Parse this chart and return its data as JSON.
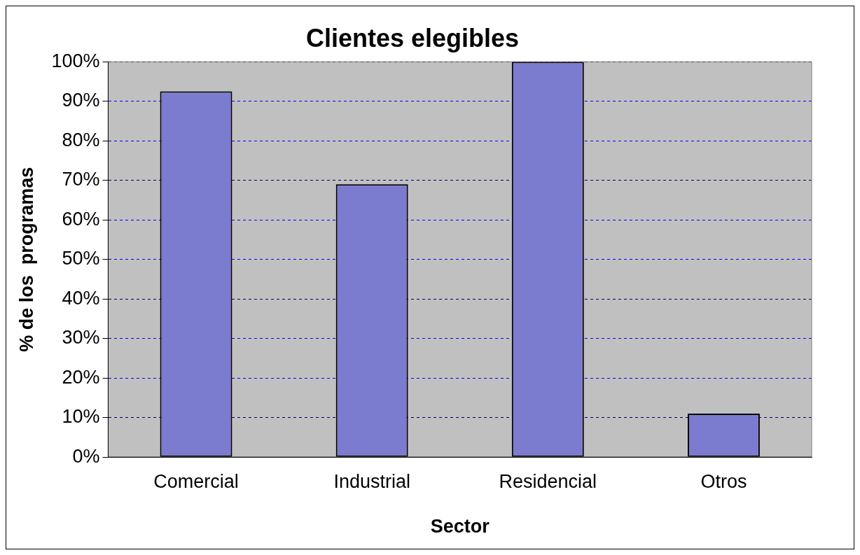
{
  "chart_data": {
    "type": "bar",
    "title": "Clientes elegibles",
    "xlabel": "Sector",
    "ylabel": "% de los  programas",
    "categories": [
      "Comercial",
      "Industrial",
      "Residencial",
      "Otros"
    ],
    "values": [
      92.5,
      69,
      100,
      11
    ],
    "color": "#7b7bd0",
    "ylim": [
      0,
      100
    ],
    "yticks": [
      {
        "value": 0,
        "label": "0%"
      },
      {
        "value": 10,
        "label": "10%"
      },
      {
        "value": 20,
        "label": "20%"
      },
      {
        "value": 30,
        "label": "30%"
      },
      {
        "value": 40,
        "label": "40%"
      },
      {
        "value": 50,
        "label": "50%"
      },
      {
        "value": 60,
        "label": "60%"
      },
      {
        "value": 70,
        "label": "70%"
      },
      {
        "value": 80,
        "label": "80%"
      },
      {
        "value": 90,
        "label": "90%"
      },
      {
        "value": 100,
        "label": "100%"
      }
    ],
    "grid": "y",
    "legend": false
  }
}
